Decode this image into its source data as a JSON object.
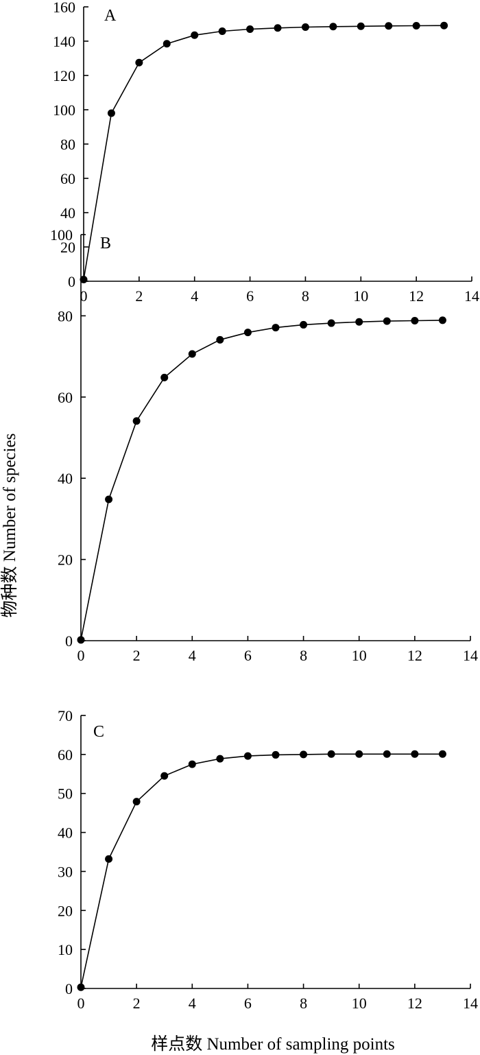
{
  "ylabel": "物种数 Number of species",
  "xlabel": "样点数 Number of sampling points",
  "chart_data": [
    {
      "type": "line",
      "panel": "A",
      "x": [
        0,
        1,
        2,
        3,
        4,
        5,
        6,
        7,
        8,
        9,
        10,
        11,
        12,
        13
      ],
      "values": [
        1,
        98,
        127.5,
        138.5,
        143.5,
        145.8,
        147,
        147.7,
        148.2,
        148.5,
        148.7,
        148.9,
        149,
        149.1
      ],
      "xlim": [
        0,
        14
      ],
      "ylim": [
        0,
        160
      ],
      "xticks": [
        "0",
        "2",
        "4",
        "6",
        "8",
        "10",
        "12",
        "14"
      ],
      "yticks": [
        "0",
        "20",
        "40",
        "60",
        "80",
        "100",
        "120",
        "140",
        "160"
      ],
      "grid": false
    },
    {
      "type": "line",
      "panel": "B",
      "x": [
        0,
        1,
        2,
        3,
        4,
        5,
        6,
        7,
        8,
        9,
        10,
        11,
        12,
        13
      ],
      "values": [
        0.2,
        34.8,
        54.1,
        64.8,
        70.6,
        74.1,
        75.9,
        77.1,
        77.8,
        78.2,
        78.5,
        78.7,
        78.8,
        78.9
      ],
      "xlim": [
        0,
        14
      ],
      "ylim": [
        0,
        100
      ],
      "xticks": [
        "0",
        "2",
        "4",
        "6",
        "8",
        "10",
        "12",
        "14"
      ],
      "yticks": [
        "0",
        "20",
        "40",
        "60",
        "80",
        "100"
      ],
      "grid": false
    },
    {
      "type": "line",
      "panel": "C",
      "x": [
        0,
        1,
        2,
        3,
        4,
        5,
        6,
        7,
        8,
        9,
        10,
        11,
        12,
        13
      ],
      "values": [
        0.3,
        33.2,
        47.9,
        54.5,
        57.5,
        58.9,
        59.6,
        59.9,
        60.0,
        60.1,
        60.1,
        60.1,
        60.1,
        60.1
      ],
      "xlim": [
        0,
        14
      ],
      "ylim": [
        0,
        70
      ],
      "xticks": [
        "0",
        "2",
        "4",
        "6",
        "8",
        "10",
        "12",
        "14"
      ],
      "yticks": [
        "0",
        "10",
        "20",
        "30",
        "40",
        "50",
        "60",
        "70"
      ],
      "grid": false
    }
  ]
}
